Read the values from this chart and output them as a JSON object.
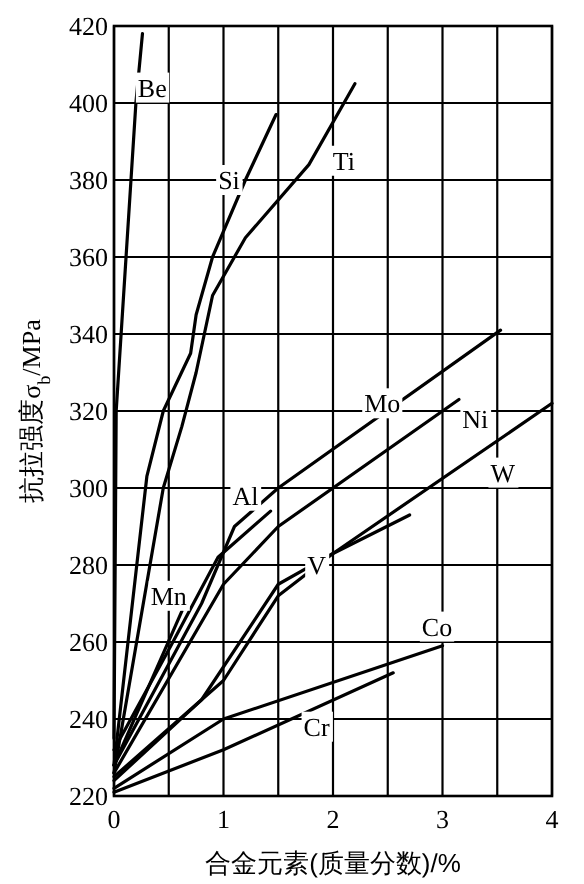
{
  "chart_data": {
    "type": "line",
    "xlabel": "合金元素(质量分数)/%",
    "ylabel": "抗拉强度σ$_{b}$/MPa",
    "xlim": [
      0,
      4
    ],
    "ylim": [
      220,
      420
    ],
    "xticks": [
      0,
      {
        "value": 0.5,
        "label": null
      },
      1,
      {
        "value": 1.5,
        "label": null
      },
      2,
      {
        "value": 2.5,
        "label": null
      },
      3,
      {
        "value": 3.5,
        "label": null
      },
      4
    ],
    "yticks": [
      220,
      240,
      260,
      280,
      300,
      320,
      340,
      360,
      380,
      400,
      420
    ],
    "grid": true,
    "marker": "none",
    "line_style": "solid",
    "series": [
      {
        "color": "#000000",
        "x": [
          0,
          0.02,
          0.2,
          0.26
        ],
        "values": [
          235,
          320,
          400,
          418
        ]
      },
      {
        "color": "#000000",
        "x": [
          0,
          0.3,
          0.45,
          0.7,
          0.75,
          0.9,
          1.2,
          1.48
        ],
        "values": [
          228,
          303,
          320,
          335,
          345,
          360,
          380,
          397
        ]
      },
      {
        "color": "#000000",
        "x": [
          0,
          0.45,
          0.62,
          0.75,
          0.9,
          1.2,
          1.78,
          2.2
        ],
        "values": [
          226,
          300,
          316,
          330,
          350,
          365,
          384,
          405
        ]
      },
      {
        "color": "#000000",
        "x": [
          0,
          0.8,
          1.1,
          1.5,
          3.53
        ],
        "values": [
          228,
          270,
          290,
          300,
          341
        ]
      },
      {
        "color": "#000000",
        "x": [
          0,
          1,
          1.5,
          3.15
        ],
        "values": [
          226,
          275,
          290,
          323
        ]
      },
      {
        "color": "#000000",
        "x": [
          0,
          0.8,
          1.5,
          2,
          4
        ],
        "values": [
          224,
          245,
          275,
          283,
          322
        ]
      },
      {
        "color": "#000000",
        "x": [
          0,
          1,
          1.5,
          2,
          2.7
        ],
        "values": [
          225,
          250,
          272,
          283,
          293
        ]
      },
      {
        "color": "#000000",
        "x": [
          0,
          0.5,
          0.95,
          1.43
        ],
        "values": [
          232,
          258,
          282,
          294
        ]
      },
      {
        "color": "#000000",
        "x": [
          0,
          0.62
        ],
        "values": [
          228,
          268
        ]
      },
      {
        "color": "#000000",
        "x": [
          0,
          1,
          3
        ],
        "values": [
          222,
          240,
          259
        ]
      },
      {
        "color": "#000000",
        "x": [
          0,
          1,
          2.55
        ],
        "values": [
          221,
          232,
          252
        ]
      }
    ],
    "annotations": [
      {
        "text": "Be",
        "x": 0.35,
        "y": 404
      },
      {
        "text": "Si",
        "x": 1.05,
        "y": 380
      },
      {
        "text": "Ti",
        "x": 2.1,
        "y": 385
      },
      {
        "text": "Mo",
        "x": 2.45,
        "y": 322
      },
      {
        "text": "Ni",
        "x": 3.3,
        "y": 318
      },
      {
        "text": "W",
        "x": 3.55,
        "y": 304
      },
      {
        "text": "V",
        "x": 1.85,
        "y": 280
      },
      {
        "text": "Al",
        "x": 1.2,
        "y": 298
      },
      {
        "text": "Mn",
        "x": 0.5,
        "y": 272
      },
      {
        "text": "Co",
        "x": 2.95,
        "y": 264
      },
      {
        "text": "Cr",
        "x": 1.85,
        "y": 238
      }
    ]
  }
}
